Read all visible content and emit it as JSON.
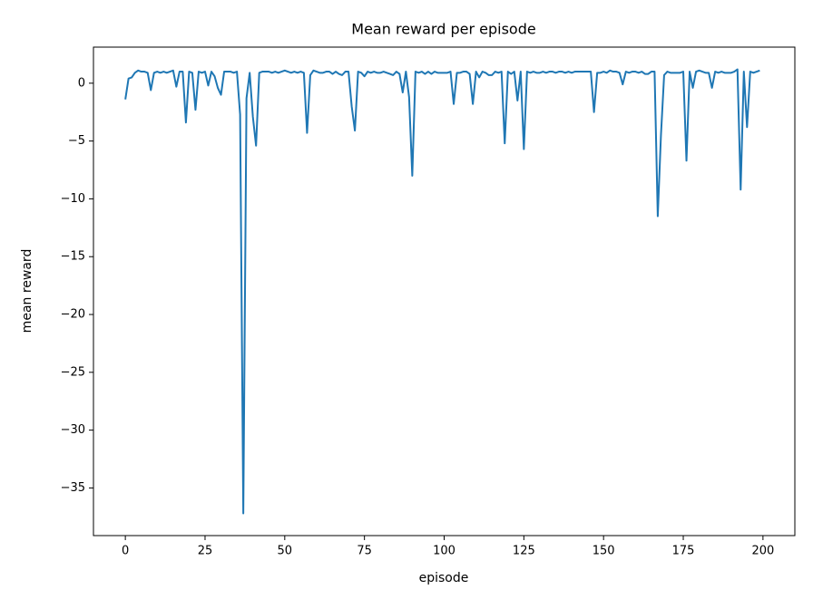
{
  "chart_data": {
    "type": "line",
    "title": "Mean reward per episode",
    "xlabel": "episode",
    "ylabel": "mean reward",
    "x": [
      0,
      1,
      2,
      3,
      4,
      5,
      6,
      7,
      8,
      9,
      10,
      11,
      12,
      13,
      14,
      15,
      16,
      17,
      18,
      19,
      20,
      21,
      22,
      23,
      24,
      25,
      26,
      27,
      28,
      29,
      30,
      31,
      32,
      33,
      34,
      35,
      36,
      37,
      38,
      39,
      40,
      41,
      42,
      43,
      44,
      45,
      46,
      47,
      48,
      49,
      50,
      51,
      52,
      53,
      54,
      55,
      56,
      57,
      58,
      59,
      60,
      61,
      62,
      63,
      64,
      65,
      66,
      67,
      68,
      69,
      70,
      71,
      72,
      73,
      74,
      75,
      76,
      77,
      78,
      79,
      80,
      81,
      82,
      83,
      84,
      85,
      86,
      87,
      88,
      89,
      90,
      91,
      92,
      93,
      94,
      95,
      96,
      97,
      98,
      99,
      100,
      101,
      102,
      103,
      104,
      105,
      106,
      107,
      108,
      109,
      110,
      111,
      112,
      113,
      114,
      115,
      116,
      117,
      118,
      119,
      120,
      121,
      122,
      123,
      124,
      125,
      126,
      127,
      128,
      129,
      130,
      131,
      132,
      133,
      134,
      135,
      136,
      137,
      138,
      139,
      140,
      141,
      142,
      143,
      144,
      145,
      146,
      147,
      148,
      149,
      150,
      151,
      152,
      153,
      154,
      155,
      156,
      157,
      158,
      159,
      160,
      161,
      162,
      163,
      164,
      165,
      166,
      167,
      168,
      169,
      170,
      171,
      172,
      173,
      174,
      175,
      176,
      177,
      178,
      179,
      180,
      181,
      182,
      183,
      184,
      185,
      186,
      187,
      188,
      189,
      190,
      191,
      192,
      193,
      194,
      195,
      196,
      197,
      198,
      199
    ],
    "series": [
      {
        "color": "#1f77b4",
        "values": [
          -1.4,
          0.4,
          0.5,
          0.9,
          1.1,
          1.0,
          1.0,
          0.9,
          -0.6,
          0.9,
          1.0,
          0.9,
          1.0,
          0.9,
          1.0,
          1.1,
          -0.3,
          1.0,
          1.0,
          -3.4,
          1.0,
          0.9,
          -2.3,
          1.0,
          0.9,
          1.0,
          -0.2,
          1.0,
          0.6,
          -0.4,
          -1.0,
          1.0,
          1.0,
          1.0,
          0.9,
          1.0,
          -2.7,
          -37.2,
          -1.3,
          0.9,
          -2.9,
          -5.4,
          0.9,
          1.0,
          1.0,
          1.0,
          0.9,
          1.0,
          0.9,
          1.0,
          1.1,
          1.0,
          0.9,
          1.0,
          0.9,
          1.0,
          0.9,
          -4.3,
          0.7,
          1.1,
          1.0,
          0.9,
          0.9,
          1.0,
          1.0,
          0.8,
          1.0,
          0.8,
          0.7,
          1.0,
          1.0,
          -2.0,
          -4.1,
          1.0,
          0.9,
          0.6,
          1.0,
          0.9,
          1.0,
          0.9,
          0.9,
          1.0,
          0.9,
          0.8,
          0.7,
          1.0,
          0.8,
          -0.8,
          1.0,
          -1.2,
          -8.0,
          1.0,
          0.9,
          1.0,
          0.8,
          1.0,
          0.8,
          1.0,
          0.9,
          0.9,
          0.9,
          0.9,
          1.0,
          -1.8,
          0.9,
          0.9,
          1.0,
          1.0,
          0.8,
          -1.8,
          1.0,
          0.5,
          1.0,
          0.9,
          0.7,
          0.7,
          1.0,
          0.9,
          1.0,
          -5.2,
          1.0,
          0.8,
          1.0,
          -1.5,
          1.0,
          -5.7,
          1.0,
          0.9,
          1.0,
          0.9,
          0.9,
          1.0,
          0.9,
          1.0,
          1.0,
          0.9,
          1.0,
          1.0,
          0.9,
          1.0,
          0.9,
          1.0,
          1.0,
          1.0,
          1.0,
          1.0,
          1.0,
          -2.5,
          0.9,
          0.9,
          1.0,
          0.9,
          1.1,
          1.0,
          1.0,
          0.9,
          -0.1,
          1.0,
          0.9,
          1.0,
          1.0,
          0.9,
          1.0,
          0.8,
          0.8,
          1.0,
          1.0,
          -11.5,
          -4.5,
          0.7,
          1.0,
          0.9,
          0.9,
          0.9,
          0.9,
          1.0,
          -6.7,
          1.0,
          -0.4,
          1.0,
          1.1,
          1.0,
          0.9,
          0.9,
          -0.4,
          1.0,
          0.9,
          1.0,
          0.9,
          0.9,
          0.9,
          1.0,
          1.2,
          -9.2,
          1.0,
          -3.8,
          1.0,
          0.9,
          1.0,
          1.1
        ]
      }
    ],
    "xlim": [
      -10,
      210
    ],
    "ylim": [
      -39.12,
      3.12
    ],
    "xticks": [
      0,
      25,
      50,
      75,
      100,
      125,
      150,
      175,
      200
    ],
    "yticks": [
      {
        "value": -35,
        "label": "−35"
      },
      {
        "value": -30,
        "label": "−30"
      },
      {
        "value": -25,
        "label": "−25"
      },
      {
        "value": -20,
        "label": "−20"
      },
      {
        "value": -15,
        "label": "−15"
      },
      {
        "value": -10,
        "label": "−10"
      },
      {
        "value": -5,
        "label": "−5"
      },
      0
    ]
  }
}
